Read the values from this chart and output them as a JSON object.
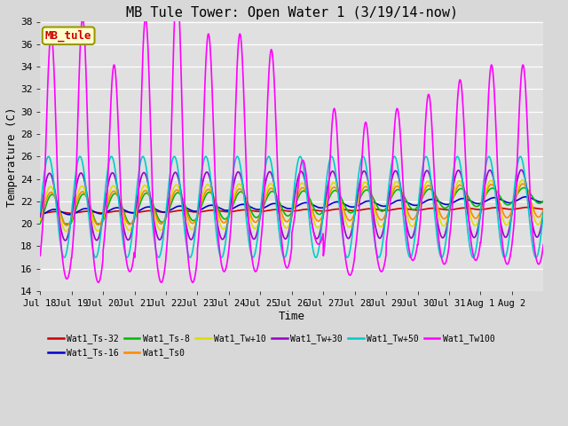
{
  "title": "MB Tule Tower: Open Water 1 (3/19/14-now)",
  "xlabel": "Time",
  "ylabel": "Temperature (C)",
  "ylim": [
    14,
    38
  ],
  "yticks": [
    14,
    16,
    18,
    20,
    22,
    24,
    26,
    28,
    30,
    32,
    34,
    36,
    38
  ],
  "xtick_labels": [
    "Jul 18",
    "Jul 19",
    "Jul 20",
    "Jul 21",
    "Jul 22",
    "Jul 23",
    "Jul 24",
    "Jul 25",
    "Jul 26",
    "Jul 27",
    "Jul 28",
    "Jul 29",
    "Jul 30",
    "Jul 31",
    "Aug 1",
    "Aug 2"
  ],
  "series": [
    {
      "name": "Wat1_Ts-32",
      "color": "#cc0000",
      "lw": 1.2
    },
    {
      "name": "Wat1_Ts-16",
      "color": "#0000cc",
      "lw": 1.2
    },
    {
      "name": "Wat1_Ts-8",
      "color": "#00bb00",
      "lw": 1.2
    },
    {
      "name": "Wat1_Ts0",
      "color": "#ff8800",
      "lw": 1.2
    },
    {
      "name": "Wat1_Tw+10",
      "color": "#dddd00",
      "lw": 1.2
    },
    {
      "name": "Wat1_Tw+30",
      "color": "#9900cc",
      "lw": 1.2
    },
    {
      "name": "Wat1_Tw+50",
      "color": "#00cccc",
      "lw": 1.2
    },
    {
      "name": "Wat1_Tw100",
      "color": "#ff00ff",
      "lw": 1.2
    }
  ],
  "annotation": {
    "text": "MB_tule",
    "fc": "#ffffcc",
    "ec": "#999900",
    "tc": "#cc0000"
  },
  "fig_bg": "#d8d8d8",
  "ax_bg": "#e0e0e0",
  "title_fontsize": 11,
  "legend_ncol": 6
}
